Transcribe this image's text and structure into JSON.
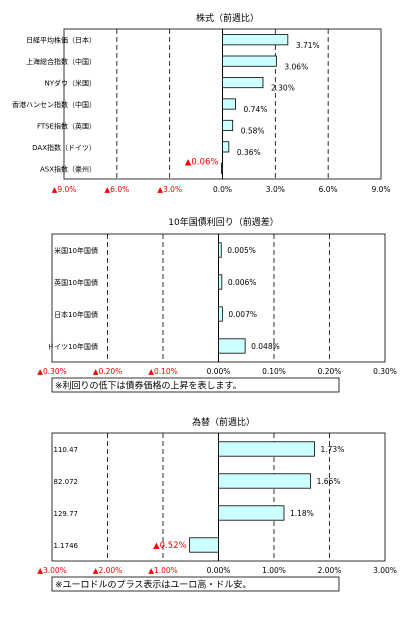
{
  "chart_data": [
    {
      "type": "bar",
      "orientation": "horizontal",
      "title": "株式（前週比）",
      "categories": [
        "日経平均株価（日本）",
        "上海総合指数（中国）",
        "NYダウ（米国）",
        "香港ハンセン指数（中国）",
        "FTSE指数（英国）",
        "DAX指数（ドイツ）",
        "ASX指数（豪州）"
      ],
      "values": [
        3.71,
        3.06,
        2.3,
        0.74,
        0.58,
        0.36,
        -0.06
      ],
      "value_labels": [
        "3.71%",
        "3.06%",
        "2.30%",
        "0.74%",
        "0.58%",
        "0.36%",
        "▲0.06%"
      ],
      "xlim": [
        -9,
        9
      ],
      "xticks": [
        -9,
        -6,
        -3,
        0,
        3,
        6,
        9
      ],
      "xtick_labels": [
        "▲9.0%",
        "▲6.0%",
        "▲3.0%",
        "0.0%",
        "3.0%",
        "6.0%",
        "9.0%"
      ],
      "grid": "vertical dashed",
      "colors": {
        "bar_fill": "#ccffff",
        "bar_stroke": "#000000",
        "negative_text": "#ff0000"
      }
    },
    {
      "type": "bar",
      "orientation": "horizontal",
      "title": "10年国債利回り（前週差）",
      "categories": [
        "米国10年国債",
        "英国10年国債",
        "日本10年国債",
        "ドイツ10年国債"
      ],
      "values": [
        0.005,
        0.006,
        0.007,
        0.048
      ],
      "value_labels": [
        "0.005%",
        "0.006%",
        "0.007%",
        "0.048%"
      ],
      "xlim": [
        -0.3,
        0.3
      ],
      "xticks": [
        -0.3,
        -0.2,
        -0.1,
        0,
        0.1,
        0.2,
        0.3
      ],
      "xtick_labels": [
        "▲0.30%",
        "▲0.20%",
        "▲0.10%",
        "0.00%",
        "0.10%",
        "0.20%",
        "0.30%"
      ],
      "grid": "vertical dashed",
      "note": "※利回りの低下は債券価格の上昇を表します。",
      "colors": {
        "bar_fill": "#ccffff",
        "bar_stroke": "#000000",
        "negative_text": "#ff0000"
      }
    },
    {
      "type": "bar",
      "orientation": "horizontal",
      "title": "為替（前週比）",
      "categories": [
        "110.47",
        "82.072",
        "129.77",
        "1.1746"
      ],
      "values": [
        1.73,
        1.66,
        1.18,
        -0.52
      ],
      "value_labels": [
        "1.73%",
        "1.66%",
        "1.18%",
        "▲0.52%"
      ],
      "xlim": [
        -3,
        3
      ],
      "xticks": [
        -3,
        -2,
        -1,
        0,
        1,
        2,
        3
      ],
      "xtick_labels": [
        "▲3.00%",
        "▲2.00%",
        "▲1.00%",
        "0.00%",
        "1.00%",
        "2.00%",
        "3.00%"
      ],
      "grid": "vertical dashed",
      "note": "※ユーロドルのプラス表示はユーロ高・ドル安。",
      "colors": {
        "bar_fill": "#ccffff",
        "bar_stroke": "#000000",
        "negative_text": "#ff0000"
      }
    }
  ]
}
